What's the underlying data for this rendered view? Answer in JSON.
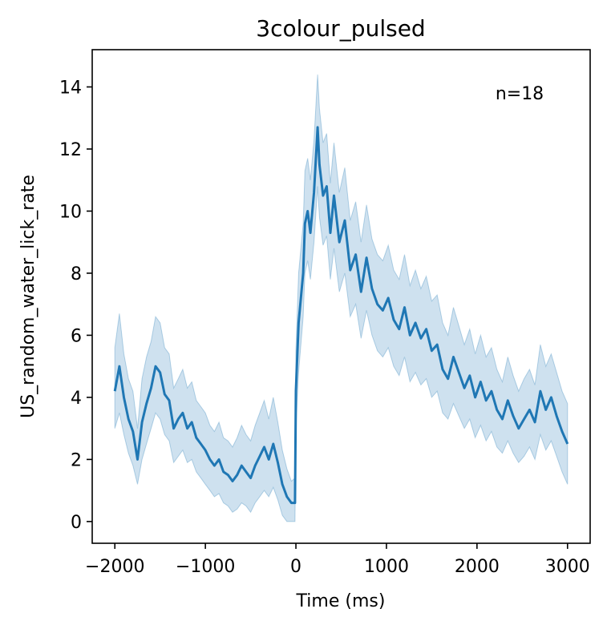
{
  "chart_data": {
    "type": "line",
    "title": "3colour_pulsed",
    "xlabel": "Time (ms)",
    "ylabel": "US_random_water_lick_rate",
    "annotation": "n=18",
    "xlim": [
      -2250,
      3250
    ],
    "ylim": [
      -0.7,
      15.2
    ],
    "xticks": [
      -2000,
      -1000,
      0,
      1000,
      2000,
      3000
    ],
    "xtick_labels": [
      "−2000",
      "−1000",
      "0",
      "1000",
      "2000",
      "3000"
    ],
    "yticks": [
      0,
      2,
      4,
      6,
      8,
      10,
      12,
      14
    ],
    "ytick_labels": [
      "0",
      "2",
      "4",
      "6",
      "8",
      "10",
      "12",
      "14"
    ],
    "grid": false,
    "colors": {
      "line": "#1f77b4",
      "band": "#1f77b4"
    },
    "series": [
      {
        "x": [
          -2000,
          -1950,
          -1900,
          -1850,
          -1800,
          -1750,
          -1700,
          -1650,
          -1600,
          -1550,
          -1500,
          -1450,
          -1400,
          -1350,
          -1300,
          -1250,
          -1200,
          -1150,
          -1100,
          -1050,
          -1000,
          -950,
          -900,
          -850,
          -800,
          -750,
          -700,
          -650,
          -600,
          -550,
          -500,
          -450,
          -400,
          -350,
          -300,
          -250,
          -200,
          -150,
          -100,
          -50,
          -10,
          0,
          30,
          80,
          100,
          130,
          160,
          200,
          240,
          260,
          300,
          340,
          380,
          420,
          480,
          540,
          600,
          660,
          720,
          780,
          840,
          900,
          960,
          1020,
          1080,
          1140,
          1200,
          1260,
          1320,
          1380,
          1440,
          1500,
          1560,
          1620,
          1680,
          1740,
          1800,
          1860,
          1920,
          1980,
          2040,
          2100,
          2160,
          2220,
          2280,
          2340,
          2400,
          2460,
          2520,
          2580,
          2640,
          2700,
          2760,
          2820,
          2880,
          2940,
          3000
        ],
        "mean": [
          4.2,
          5.0,
          4.0,
          3.3,
          2.9,
          2.0,
          3.2,
          3.8,
          4.3,
          5.0,
          4.8,
          4.1,
          3.9,
          3.0,
          3.3,
          3.5,
          3.0,
          3.2,
          2.7,
          2.5,
          2.3,
          2.0,
          1.8,
          2.0,
          1.6,
          1.5,
          1.3,
          1.5,
          1.8,
          1.6,
          1.4,
          1.8,
          2.1,
          2.4,
          2.0,
          2.5,
          1.9,
          1.2,
          0.8,
          0.6,
          0.6,
          4.2,
          6.4,
          8.0,
          9.6,
          10.0,
          9.3,
          10.6,
          12.7,
          11.5,
          10.5,
          10.8,
          9.3,
          10.5,
          9.0,
          9.7,
          8.1,
          8.6,
          7.4,
          8.5,
          7.5,
          7.0,
          6.8,
          7.2,
          6.5,
          6.2,
          6.9,
          6.0,
          6.4,
          5.9,
          6.2,
          5.5,
          5.7,
          4.9,
          4.6,
          5.3,
          4.8,
          4.3,
          4.7,
          4.0,
          4.5,
          3.9,
          4.2,
          3.6,
          3.3,
          3.9,
          3.4,
          3.0,
          3.3,
          3.6,
          3.2,
          4.2,
          3.6,
          4.0,
          3.4,
          2.9,
          2.5
        ],
        "lower": [
          3.0,
          3.5,
          2.8,
          2.2,
          1.8,
          1.2,
          2.0,
          2.5,
          3.0,
          3.5,
          3.3,
          2.8,
          2.6,
          1.9,
          2.1,
          2.3,
          1.9,
          2.0,
          1.6,
          1.4,
          1.2,
          1.0,
          0.8,
          0.9,
          0.6,
          0.5,
          0.3,
          0.4,
          0.6,
          0.5,
          0.3,
          0.6,
          0.8,
          1.0,
          0.8,
          1.1,
          0.7,
          0.2,
          0.0,
          0.0,
          0.0,
          3.0,
          4.8,
          6.6,
          8.0,
          8.4,
          7.8,
          9.0,
          10.8,
          9.8,
          8.9,
          9.2,
          7.8,
          8.8,
          7.4,
          8.0,
          6.6,
          7.0,
          5.9,
          6.8,
          6.0,
          5.5,
          5.3,
          5.6,
          5.0,
          4.7,
          5.3,
          4.5,
          4.8,
          4.4,
          4.6,
          4.0,
          4.2,
          3.5,
          3.3,
          3.8,
          3.4,
          3.0,
          3.3,
          2.7,
          3.1,
          2.6,
          2.9,
          2.4,
          2.2,
          2.6,
          2.2,
          1.9,
          2.1,
          2.4,
          2.0,
          2.8,
          2.3,
          2.6,
          2.1,
          1.6,
          1.2
        ],
        "upper": [
          5.6,
          6.7,
          5.4,
          4.6,
          4.2,
          3.0,
          4.6,
          5.3,
          5.8,
          6.6,
          6.4,
          5.6,
          5.4,
          4.3,
          4.6,
          4.9,
          4.3,
          4.5,
          3.9,
          3.7,
          3.5,
          3.1,
          2.9,
          3.2,
          2.7,
          2.6,
          2.4,
          2.7,
          3.1,
          2.8,
          2.6,
          3.1,
          3.5,
          3.9,
          3.3,
          4.0,
          3.2,
          2.3,
          1.7,
          1.3,
          1.4,
          5.5,
          8.0,
          9.6,
          11.3,
          11.7,
          11.0,
          12.3,
          14.4,
          13.3,
          12.2,
          12.5,
          10.9,
          12.2,
          10.6,
          11.4,
          9.7,
          10.3,
          9.0,
          10.2,
          9.1,
          8.6,
          8.4,
          8.9,
          8.1,
          7.8,
          8.6,
          7.6,
          8.1,
          7.5,
          7.9,
          7.1,
          7.3,
          6.4,
          6.0,
          6.9,
          6.3,
          5.7,
          6.2,
          5.4,
          6.0,
          5.3,
          5.6,
          4.9,
          4.5,
          5.3,
          4.7,
          4.2,
          4.6,
          4.9,
          4.4,
          5.7,
          5.0,
          5.4,
          4.8,
          4.2,
          3.8
        ]
      }
    ]
  }
}
